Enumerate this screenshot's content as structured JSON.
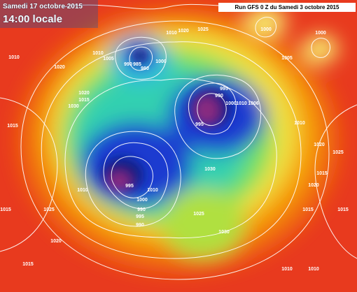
{
  "header": {
    "date": "Samedi 17 octobre 2015",
    "time": "14:00 locale",
    "run": "Run GFS 0 Z du Samedi 3 octobre 2015"
  },
  "isobar_labels": [
    "1010",
    "1020",
    "1010",
    "1005",
    "990",
    "985",
    "980",
    "1000",
    "1010",
    "1020",
    "1025",
    "1000",
    "1000",
    "1005",
    "995",
    "990",
    "1000",
    "1010",
    "1006",
    "995",
    "1020",
    "1015",
    "1030",
    "1015",
    "1010",
    "1020",
    "1025",
    "1030",
    "995",
    "1010",
    "1000",
    "990",
    "995",
    "990",
    "1010",
    "1025",
    "1015",
    "1025",
    "1030",
    "1015",
    "1015",
    "1015",
    "1020",
    "1015",
    "1010",
    "1010",
    "1020"
  ]
}
